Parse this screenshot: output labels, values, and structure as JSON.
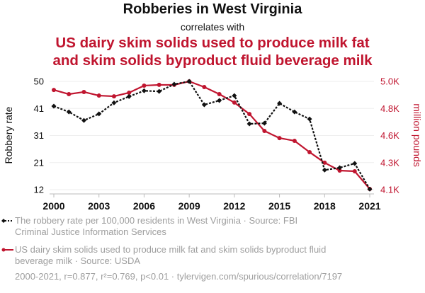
{
  "header": {
    "title": "Robberies in West Virginia",
    "subtitle": "correlates with",
    "title2_line1": "US dairy skim solids used to produce milk fat",
    "title2_line2": "and skim solids byproduct fluid beverage milk"
  },
  "legend": {
    "series1_line1": "The robbery rate per 100,000 residents in West Virginia · Source: FBI",
    "series1_line2": "Criminal Justice Information Services",
    "series2_line1": "US dairy skim solids used to produce milk fat and skim solids byproduct fluid",
    "series2_line2": "beverage milk · Source: USDA"
  },
  "footer": "2000-2021, r=0.877, r²=0.769, p<0.01 · tylervigen.com/spurious/correlation/7197",
  "colors": {
    "series1": "#111111",
    "series2": "#c0152f",
    "grid": "#eeeeee",
    "muted": "#9e9e9e"
  },
  "chart_data": {
    "type": "line",
    "title": "Robberies in West Virginia",
    "x": [
      2000,
      2001,
      2002,
      2003,
      2004,
      2005,
      2006,
      2007,
      2008,
      2009,
      2010,
      2011,
      2012,
      2013,
      2014,
      2015,
      2016,
      2017,
      2018,
      2019,
      2020,
      2021
    ],
    "xticks": [
      2000,
      2003,
      2006,
      2009,
      2012,
      2015,
      2018,
      2021
    ],
    "ylabel_left": "Robbery rate",
    "ylabel_right": "million pounds",
    "yticks_left": [
      12,
      21,
      31,
      41,
      50
    ],
    "ylim_left": [
      12,
      50
    ],
    "yticks_right": [
      "4.1K",
      "4.3K",
      "4.6K",
      "4.8K",
      "5.0K"
    ],
    "yticks_right_values": [
      4100,
      4325,
      4550,
      4775,
      5000
    ],
    "ylim_right": [
      4100,
      5000
    ],
    "grid": true,
    "series": [
      {
        "name": "The robbery rate per 100,000 residents in West Virginia",
        "axis": "left",
        "style": "dotted-diamond",
        "values": [
          41.3,
          39.3,
          36.3,
          38.6,
          42.5,
          44.7,
          46.7,
          46.5,
          49.0,
          50.0,
          41.8,
          43.3,
          45.0,
          35.1,
          35.3,
          42.3,
          39.3,
          36.8,
          18.9,
          19.7,
          21.2,
          12.2
        ]
      },
      {
        "name": "US dairy skim solids used to produce milk fat and skim solids byproduct fluid beverage milk",
        "axis": "right",
        "style": "solid-circle",
        "values": [
          4929,
          4894,
          4912,
          4882,
          4876,
          4906,
          4965,
          4971,
          4971,
          5000,
          4953,
          4894,
          4824,
          4729,
          4588,
          4529,
          4506,
          4412,
          4324,
          4259,
          4253,
          4106
        ]
      }
    ]
  }
}
